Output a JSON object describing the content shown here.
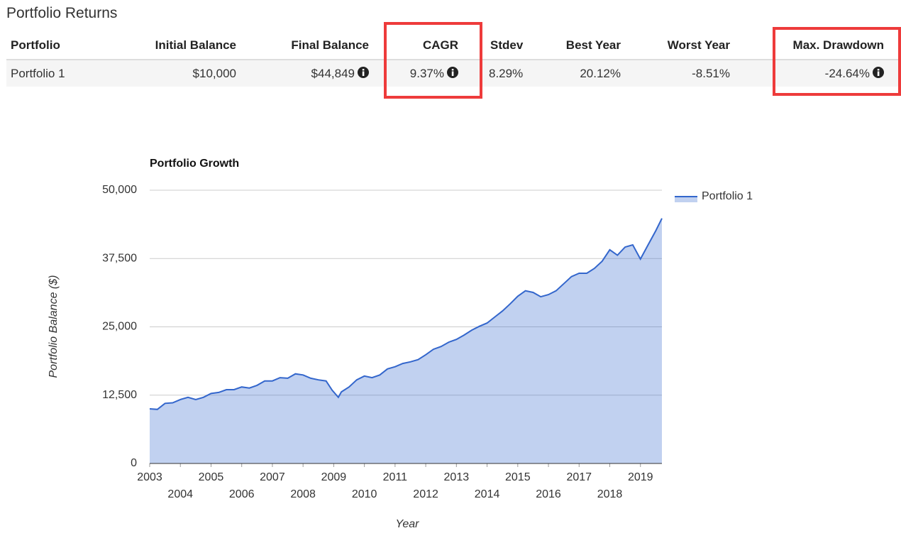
{
  "header": {
    "title": "Portfolio Returns"
  },
  "table": {
    "columns": [
      "Portfolio",
      "Initial Balance",
      "Final Balance",
      "CAGR",
      "Stdev",
      "Best Year",
      "Worst Year",
      "Max. Drawdown"
    ],
    "rows": [
      [
        "Portfolio 1",
        "$10,000",
        "$44,849",
        "9.37%",
        "8.29%",
        "20.12%",
        "-8.51%",
        "-24.64%"
      ]
    ]
  },
  "chart_data": {
    "type": "area",
    "title": "Portfolio Growth",
    "x_label": "Year",
    "y_label": "Portfolio Balance ($)",
    "x": [
      2003,
      2003.25,
      2003.5,
      2003.75,
      2004,
      2004.25,
      2004.5,
      2004.75,
      2005,
      2005.25,
      2005.5,
      2005.75,
      2006,
      2006.25,
      2006.5,
      2006.75,
      2007,
      2007.25,
      2007.5,
      2007.75,
      2008,
      2008.25,
      2008.5,
      2008.75,
      2008.95,
      2009.15,
      2009.25,
      2009.5,
      2009.75,
      2010,
      2010.25,
      2010.5,
      2010.75,
      2011,
      2011.25,
      2011.5,
      2011.75,
      2012,
      2012.25,
      2012.5,
      2012.75,
      2013,
      2013.25,
      2013.5,
      2013.75,
      2014,
      2014.25,
      2014.5,
      2014.75,
      2015,
      2015.25,
      2015.5,
      2015.75,
      2016,
      2016.25,
      2016.5,
      2016.75,
      2017,
      2017.25,
      2017.5,
      2017.75,
      2018,
      2018.25,
      2018.5,
      2018.75,
      2019,
      2019.25,
      2019.5,
      2019.7
    ],
    "series": [
      {
        "name": "Portfolio 1",
        "color": "#3366cc",
        "values": [
          10000,
          9900,
          11000,
          11100,
          11700,
          12100,
          11700,
          12100,
          12800,
          13000,
          13500,
          13500,
          14000,
          13800,
          14300,
          15100,
          15100,
          15700,
          15600,
          16400,
          16200,
          15600,
          15300,
          15100,
          13400,
          12100,
          13100,
          14000,
          15300,
          16000,
          15700,
          16200,
          17300,
          17700,
          18300,
          18600,
          19000,
          19900,
          20900,
          21400,
          22200,
          22700,
          23500,
          24400,
          25100,
          25700,
          26800,
          27900,
          29200,
          30600,
          31600,
          31300,
          30500,
          30900,
          31600,
          32900,
          34200,
          34800,
          34800,
          35700,
          37000,
          39100,
          38100,
          39600,
          40000,
          37400,
          40000,
          42600,
          44849
        ]
      }
    ],
    "xlim": [
      2003,
      2019.7
    ],
    "xticks": [
      2003,
      2004,
      2005,
      2006,
      2007,
      2008,
      2009,
      2010,
      2011,
      2012,
      2013,
      2014,
      2015,
      2016,
      2017,
      2018,
      2019
    ],
    "ylim": [
      0,
      50000
    ],
    "yticks": [
      0,
      {
        "value": 12500,
        "label": "12,500"
      },
      {
        "value": 25000,
        "label": "25,000"
      },
      {
        "value": 37500,
        "label": "37,500"
      },
      {
        "value": 50000,
        "label": "50,000"
      }
    ],
    "grid": true,
    "legend": "right"
  }
}
